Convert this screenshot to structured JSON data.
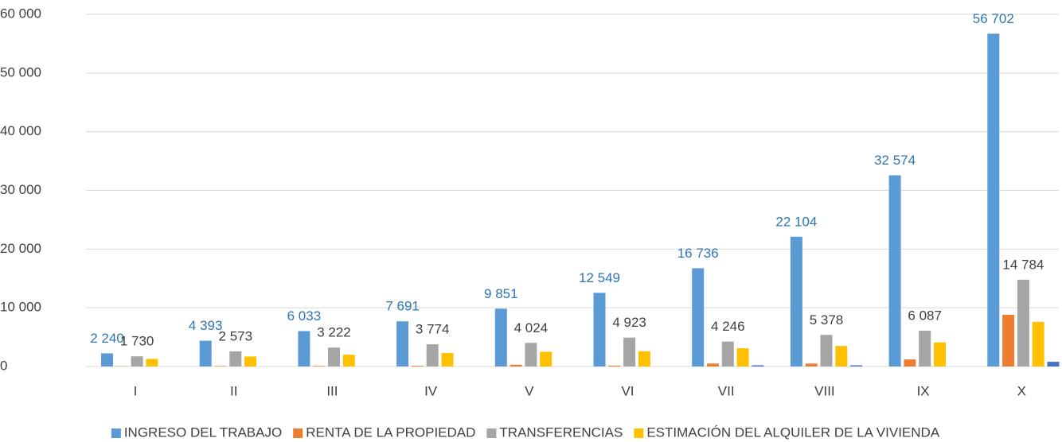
{
  "chart_data": {
    "type": "bar",
    "categories": [
      "I",
      "II",
      "III",
      "IV",
      "V",
      "VI",
      "VII",
      "VIII",
      "IX",
      "X"
    ],
    "series": [
      {
        "name": "INGRESO DEL TRABAJO",
        "color": "#5b9bd5",
        "label_color": "#2e75b6",
        "values": [
          2240,
          4393,
          6033,
          7691,
          9851,
          12549,
          16736,
          22104,
          32574,
          56702
        ],
        "value_labels": [
          "2 240",
          "4 393",
          "6 033",
          "7 691",
          "9 851",
          "12 549",
          "16 736",
          "22 104",
          "32 574",
          "56 702"
        ]
      },
      {
        "name": "RENTA DE LA PROPIEDAD",
        "color": "#ed7d31",
        "values": [
          50,
          80,
          100,
          120,
          300,
          150,
          500,
          500,
          1200,
          8800
        ]
      },
      {
        "name": "TRANSFERENCIAS",
        "color": "#a5a5a5",
        "label_color": "#404040",
        "values": [
          1730,
          2573,
          3222,
          3774,
          4024,
          4923,
          4246,
          5378,
          6087,
          14784
        ],
        "value_labels": [
          "1 730",
          "2 573",
          "3 222",
          "3 774",
          "4 024",
          "4 923",
          "4 246",
          "5 378",
          "6 087",
          "14 784"
        ]
      },
      {
        "name": "ESTIMACIÓN DEL ALQUILER DE LA VIVIENDA",
        "color": "#ffc000",
        "values": [
          1300,
          1700,
          2000,
          2300,
          2500,
          2600,
          3100,
          3500,
          4100,
          7600
        ]
      },
      {
        "color": "#4472c4",
        "values": [
          0,
          0,
          0,
          0,
          0,
          0,
          200,
          200,
          0,
          800
        ]
      }
    ],
    "ylim": [
      0,
      60000
    ],
    "yticks": [
      0,
      {
        "value": 10000,
        "label": "10 000"
      },
      {
        "value": 20000,
        "label": "20 000"
      },
      {
        "value": 30000,
        "label": "30 000"
      },
      {
        "value": 40000,
        "label": "40 000"
      },
      {
        "value": 50000,
        "label": "50 000"
      },
      {
        "value": 60000,
        "label": "60 000"
      }
    ],
    "grid": true,
    "legend": "bottom"
  }
}
